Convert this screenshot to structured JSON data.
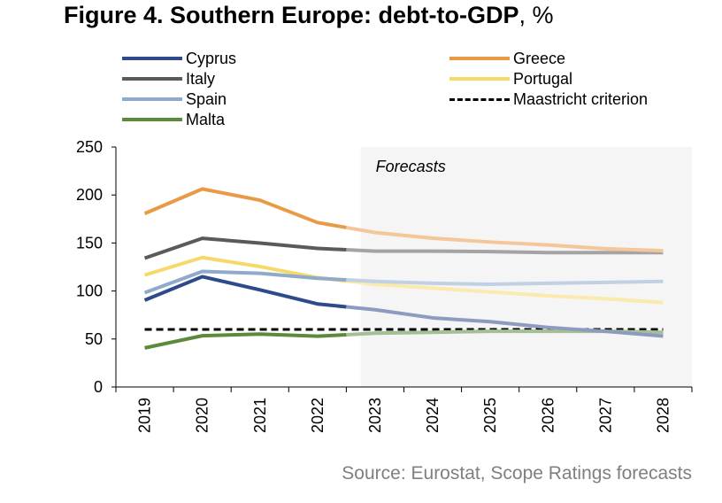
{
  "title": {
    "bold": "Figure 4. Southern Europe: debt-to-GDP",
    "rest": ", %"
  },
  "source": "Source: Eurostat, Scope Ratings forecasts",
  "chart_data": {
    "type": "line",
    "title": "Figure 4. Southern Europe: debt-to-GDP, %",
    "xlabel": "",
    "ylabel": "",
    "categories": [
      "2019",
      "2020",
      "2021",
      "2022",
      "2023",
      "2024",
      "2025",
      "2026",
      "2027",
      "2028"
    ],
    "ylim": [
      0,
      250
    ],
    "yticks": [
      0,
      50,
      100,
      150,
      200,
      250
    ],
    "grid": false,
    "legend_position": "top",
    "forecast_label": "Forecasts",
    "forecast_start_category": "2023",
    "forecast_shading": "#f5f5f5",
    "series": [
      {
        "name": "Cyprus",
        "color": "#2f4a8a",
        "values": [
          90.4,
          114.9,
          101.2,
          86.5,
          80.5,
          72.0,
          68.0,
          62.0,
          58.0,
          53.0
        ]
      },
      {
        "name": "Greece",
        "color": "#e99a45",
        "values": [
          180.7,
          206.3,
          194.6,
          171.3,
          160.9,
          155.0,
          151.0,
          148.0,
          144.0,
          142.0
        ]
      },
      {
        "name": "Italy",
        "color": "#5a5a5a",
        "values": [
          134.2,
          154.9,
          149.9,
          144.4,
          141.5,
          141.5,
          141.0,
          140.0,
          140.0,
          140.0
        ]
      },
      {
        "name": "Portugal",
        "color": "#f7d96a",
        "values": [
          116.6,
          134.9,
          125.4,
          113.9,
          107.0,
          103.0,
          99.0,
          95.0,
          92.0,
          88.0
        ]
      },
      {
        "name": "Spain",
        "color": "#8faacb",
        "values": [
          98.2,
          120.4,
          118.4,
          113.2,
          110.0,
          108.0,
          107.0,
          108.0,
          109.0,
          110.0
        ]
      },
      {
        "name": "Maastricht criterion",
        "color": "#000000",
        "dashed": true,
        "values": [
          60,
          60,
          60,
          60,
          60,
          60,
          60,
          60,
          60,
          60
        ]
      },
      {
        "name": "Malta",
        "color": "#5b8a3c",
        "values": [
          40.7,
          53.4,
          55.1,
          52.9,
          56.0,
          57.0,
          58.0,
          58.0,
          58.0,
          57.0
        ]
      }
    ],
    "legend_order": [
      "Cyprus",
      "Italy",
      "Spain",
      "Malta",
      "Greece",
      "Portugal",
      "Maastricht criterion"
    ]
  }
}
